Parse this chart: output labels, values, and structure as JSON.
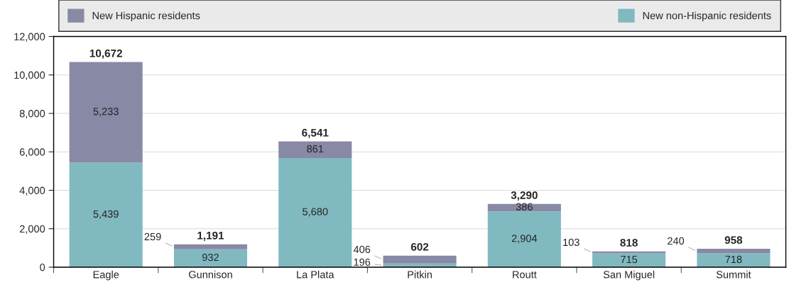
{
  "chart_data": {
    "type": "bar",
    "stacked": true,
    "categories": [
      "Eagle",
      "Gunnison",
      "La Plata",
      "Pitkin",
      "Routt",
      "San Miguel",
      "Summit"
    ],
    "series": [
      {
        "name": "New non-Hispanic residents",
        "color": "#80b9c0",
        "values": [
          5439,
          932,
          5680,
          196,
          2904,
          715,
          718
        ],
        "value_labels": [
          "5,439",
          "932",
          "5,680",
          "196",
          "2,904",
          "715",
          "718"
        ]
      },
      {
        "name": "New Hispanic residents",
        "color": "#8889a5",
        "values": [
          5233,
          259,
          861,
          406,
          386,
          103,
          240
        ],
        "value_labels": [
          "5,233",
          "259",
          "861",
          "406",
          "386",
          "103",
          "240"
        ]
      }
    ],
    "totals": [
      "10,672",
      "1,191",
      "6,541",
      "602",
      "3,290",
      "818",
      "958"
    ],
    "ylim": [
      0,
      12000
    ],
    "yticks": [
      {
        "value": 0,
        "label": "0"
      },
      {
        "value": 2000,
        "label": "2,000"
      },
      {
        "value": 4000,
        "label": "4,000"
      },
      {
        "value": 6000,
        "label": "6,000"
      },
      {
        "value": 8000,
        "label": "8,000"
      },
      {
        "value": 10000,
        "label": "10,000"
      },
      {
        "value": 12000,
        "label": "12,000"
      }
    ],
    "grid": "y",
    "legend": "top"
  }
}
